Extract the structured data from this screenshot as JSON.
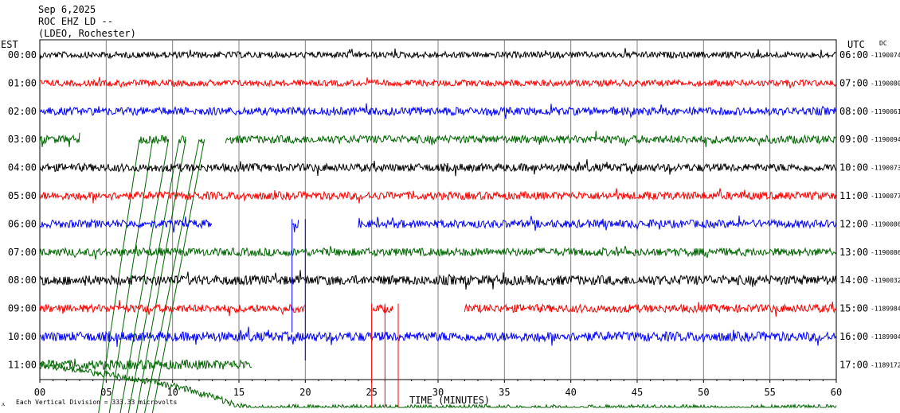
{
  "header": {
    "date": "Sep 6,2025",
    "station": "ROC EHZ LD --",
    "network": "(LDEO, Rochester)"
  },
  "left_timezone": "EST",
  "right_timezone": "UTC",
  "dc_label": "DC",
  "footer_note": "Each Vertical Division = 333.33 microvolts",
  "colors": {
    "black": "#000000",
    "red": "#ff0000",
    "blue": "#0000ff",
    "green": "#006400",
    "grid": "#808080"
  },
  "chart_data": {
    "type": "line",
    "title": "ROC EHZ LD --",
    "xlabel": "TIME (MINUTES)",
    "xlim": [
      0,
      60
    ],
    "x_ticks": [
      "00",
      "05",
      "10",
      "15",
      "20",
      "25",
      "30",
      "35",
      "40",
      "45",
      "50",
      "55",
      "60"
    ],
    "rows": [
      {
        "est": "00:00",
        "utc": "06:00",
        "dc": "-1190074",
        "color": "black",
        "amp": 4,
        "segments": [
          [
            0,
            60
          ]
        ]
      },
      {
        "est": "01:00",
        "utc": "07:00",
        "dc": "-1190080",
        "color": "red",
        "amp": 4,
        "segments": [
          [
            0,
            60
          ]
        ]
      },
      {
        "est": "02:00",
        "utc": "08:00",
        "dc": "-1190061",
        "color": "blue",
        "amp": 5,
        "segments": [
          [
            0,
            60
          ]
        ]
      },
      {
        "est": "03:00",
        "utc": "09:00",
        "dc": "-1190094",
        "color": "green",
        "amp": 5,
        "segments": [
          [
            0,
            3
          ],
          [
            7.5,
            9.7
          ],
          [
            10.5,
            11
          ],
          [
            12,
            12.4
          ],
          [
            14,
            60
          ]
        ]
      },
      {
        "est": "04:00",
        "utc": "10:00",
        "dc": "-1190073",
        "color": "black",
        "amp": 5,
        "segments": [
          [
            0,
            60
          ]
        ]
      },
      {
        "est": "05:00",
        "utc": "11:00",
        "dc": "-1190077",
        "color": "red",
        "amp": 5,
        "segments": [
          [
            0,
            60
          ]
        ]
      },
      {
        "est": "06:00",
        "utc": "12:00",
        "dc": "-1190086",
        "color": "blue",
        "amp": 5,
        "segments": [
          [
            0,
            13
          ],
          [
            19,
            19.5
          ],
          [
            24,
            60
          ]
        ]
      },
      {
        "est": "07:00",
        "utc": "13:00",
        "dc": "-1190086",
        "color": "green",
        "amp": 5,
        "segments": [
          [
            0,
            60
          ]
        ]
      },
      {
        "est": "08:00",
        "utc": "14:00",
        "dc": "-1190032",
        "color": "black",
        "amp": 6,
        "segments": [
          [
            0,
            60
          ]
        ]
      },
      {
        "est": "09:00",
        "utc": "15:00",
        "dc": "-1189984",
        "color": "red",
        "amp": 5,
        "segments": [
          [
            0,
            20
          ],
          [
            25.1,
            26.6
          ],
          [
            32,
            60
          ]
        ]
      },
      {
        "est": "10:00",
        "utc": "16:00",
        "dc": "-1189904",
        "color": "blue",
        "amp": 6,
        "segments": [
          [
            0,
            60
          ]
        ]
      },
      {
        "est": "11:00",
        "utc": "17:00",
        "dc": "-1189172",
        "color": "green",
        "amp": 6,
        "segments": [
          [
            0,
            16
          ]
        ]
      }
    ],
    "drift_last_row": {
      "color": "green",
      "points": [
        [
          0,
          0
        ],
        [
          3,
          8
        ],
        [
          5,
          12
        ],
        [
          7,
          18
        ],
        [
          9,
          23
        ],
        [
          11,
          30
        ],
        [
          12,
          36
        ],
        [
          13,
          40
        ],
        [
          14,
          46
        ],
        [
          15,
          52
        ],
        [
          16,
          55
        ],
        [
          18,
          54
        ],
        [
          60,
          54
        ]
      ]
    },
    "spikes": [
      {
        "row": 6,
        "minute": 19,
        "to_row": 9,
        "color": "blue"
      },
      {
        "row": 6,
        "minute": 20,
        "to_row": 10,
        "color": "blue"
      },
      {
        "row": 9,
        "minute": 25,
        "to_row": 12,
        "color": "red"
      },
      {
        "row": 9,
        "minute": 26,
        "to_row": 12,
        "color": "red"
      },
      {
        "row": 9,
        "minute": 27,
        "to_row": 12,
        "color": "red"
      }
    ],
    "diagonal_lines": {
      "color": "green",
      "lines": [
        {
          "from_row": 3,
          "from_minute": 7.5,
          "to_row": 12,
          "to_minute": 4.2
        },
        {
          "from_row": 3,
          "from_minute": 8.5,
          "to_row": 12,
          "to_minute": 5.0
        },
        {
          "from_row": 3,
          "from_minute": 9.7,
          "to_row": 12,
          "to_minute": 5.8
        },
        {
          "from_row": 3,
          "from_minute": 10.5,
          "to_row": 12,
          "to_minute": 6.4
        },
        {
          "from_row": 3,
          "from_minute": 11.0,
          "to_row": 12,
          "to_minute": 7.0
        },
        {
          "from_row": 3,
          "from_minute": 12.0,
          "to_row": 12,
          "to_minute": 7.6
        },
        {
          "from_row": 3,
          "from_minute": 12.4,
          "to_row": 12,
          "to_minute": 8.2
        }
      ]
    }
  }
}
